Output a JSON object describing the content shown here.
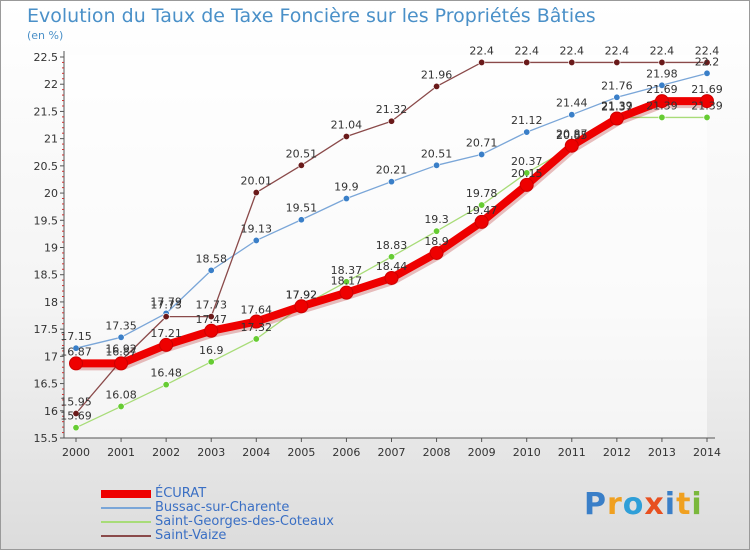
{
  "page": {
    "title": "Evolution du Taux de Taxe Foncière sur les Propriétés Bâties",
    "subtitle": "(en %)"
  },
  "logo": {
    "text": "Proxiti",
    "letter_colors": [
      "#3a7fc8",
      "#f0a020",
      "#2f9fd8",
      "#e85020",
      "#3a7fc8",
      "#f0a020",
      "#7ab83c"
    ]
  },
  "chart_data": {
    "type": "line",
    "title": "Evolution du Taux de Taxe Foncière sur les Propriétés Bâties",
    "subtitle": "(en %)",
    "xlabel": "",
    "ylabel": "",
    "x": [
      "2000",
      "2001",
      "2002",
      "2003",
      "2004",
      "2005",
      "2006",
      "2007",
      "2008",
      "2009",
      "2010",
      "2011",
      "2012",
      "2013",
      "2014"
    ],
    "ylim": [
      15.5,
      22.5
    ],
    "yticks": [
      "15.5",
      "16",
      "16.5",
      "17",
      "17.5",
      "18",
      "18.5",
      "19",
      "19.5",
      "20",
      "20.5",
      "21",
      "21.5",
      "22",
      "22.5"
    ],
    "grid": false,
    "legend_position": "bottom-left",
    "series": [
      {
        "name": "ÉCURAT",
        "color": "#ee0000",
        "marker_color": "#ee0000",
        "values": [
          16.87,
          16.87,
          17.21,
          17.47,
          17.64,
          17.92,
          18.17,
          18.44,
          18.9,
          19.47,
          20.15,
          20.87,
          21.37,
          21.69,
          21.69
        ],
        "labels": [
          "16.87",
          "16.87",
          "17.21",
          "17.47",
          "17.64",
          "17.92",
          "18.17",
          "18.44",
          "18.9",
          "19.47",
          "20.15",
          "20.87",
          "21.37",
          "21.69",
          "21.69"
        ]
      },
      {
        "name": "Bussac-sur-Charente",
        "color": "#7aa6d8",
        "marker_color": "#3a7fc8",
        "values": [
          17.15,
          17.35,
          17.79,
          18.58,
          19.13,
          19.51,
          19.9,
          20.21,
          20.51,
          20.71,
          21.12,
          21.44,
          21.76,
          21.98,
          22.2
        ],
        "labels": [
          "17.15",
          "17.35",
          "17.79",
          "18.58",
          "19.13",
          "19.51",
          "19.9",
          "20.21",
          "20.51",
          "20.71",
          "21.12",
          "21.44",
          "21.76",
          "21.98",
          "22.2"
        ]
      },
      {
        "name": "Saint-Georges-des-Coteaux",
        "color": "#a8dc78",
        "marker_color": "#66cc33",
        "values": [
          15.69,
          16.08,
          16.48,
          16.9,
          17.32,
          17.92,
          18.37,
          18.83,
          19.3,
          19.78,
          20.37,
          20.85,
          21.39,
          21.39,
          21.39
        ],
        "labels": [
          "15.69",
          "16.08",
          "16.48",
          "16.9",
          "17.32",
          "17.92",
          "18.37",
          "18.83",
          "19.3",
          "19.78",
          "20.37",
          "20.85",
          "21.39",
          "21.39",
          "21.39"
        ]
      },
      {
        "name": "Saint-Vaize",
        "color": "#8a4a4a",
        "marker_color": "#6a1a1a",
        "values": [
          15.95,
          16.92,
          17.73,
          17.73,
          20.01,
          20.51,
          21.04,
          21.32,
          21.96,
          22.4,
          22.4,
          22.4,
          22.4,
          22.4,
          22.4
        ],
        "labels": [
          "15.95",
          "16.92",
          "17.73",
          "17.73",
          "20.01",
          "20.51",
          "21.04",
          "21.32",
          "21.96",
          "22.4",
          "22.4",
          "22.4",
          "22.4",
          "22.4",
          "22.4"
        ]
      }
    ]
  }
}
